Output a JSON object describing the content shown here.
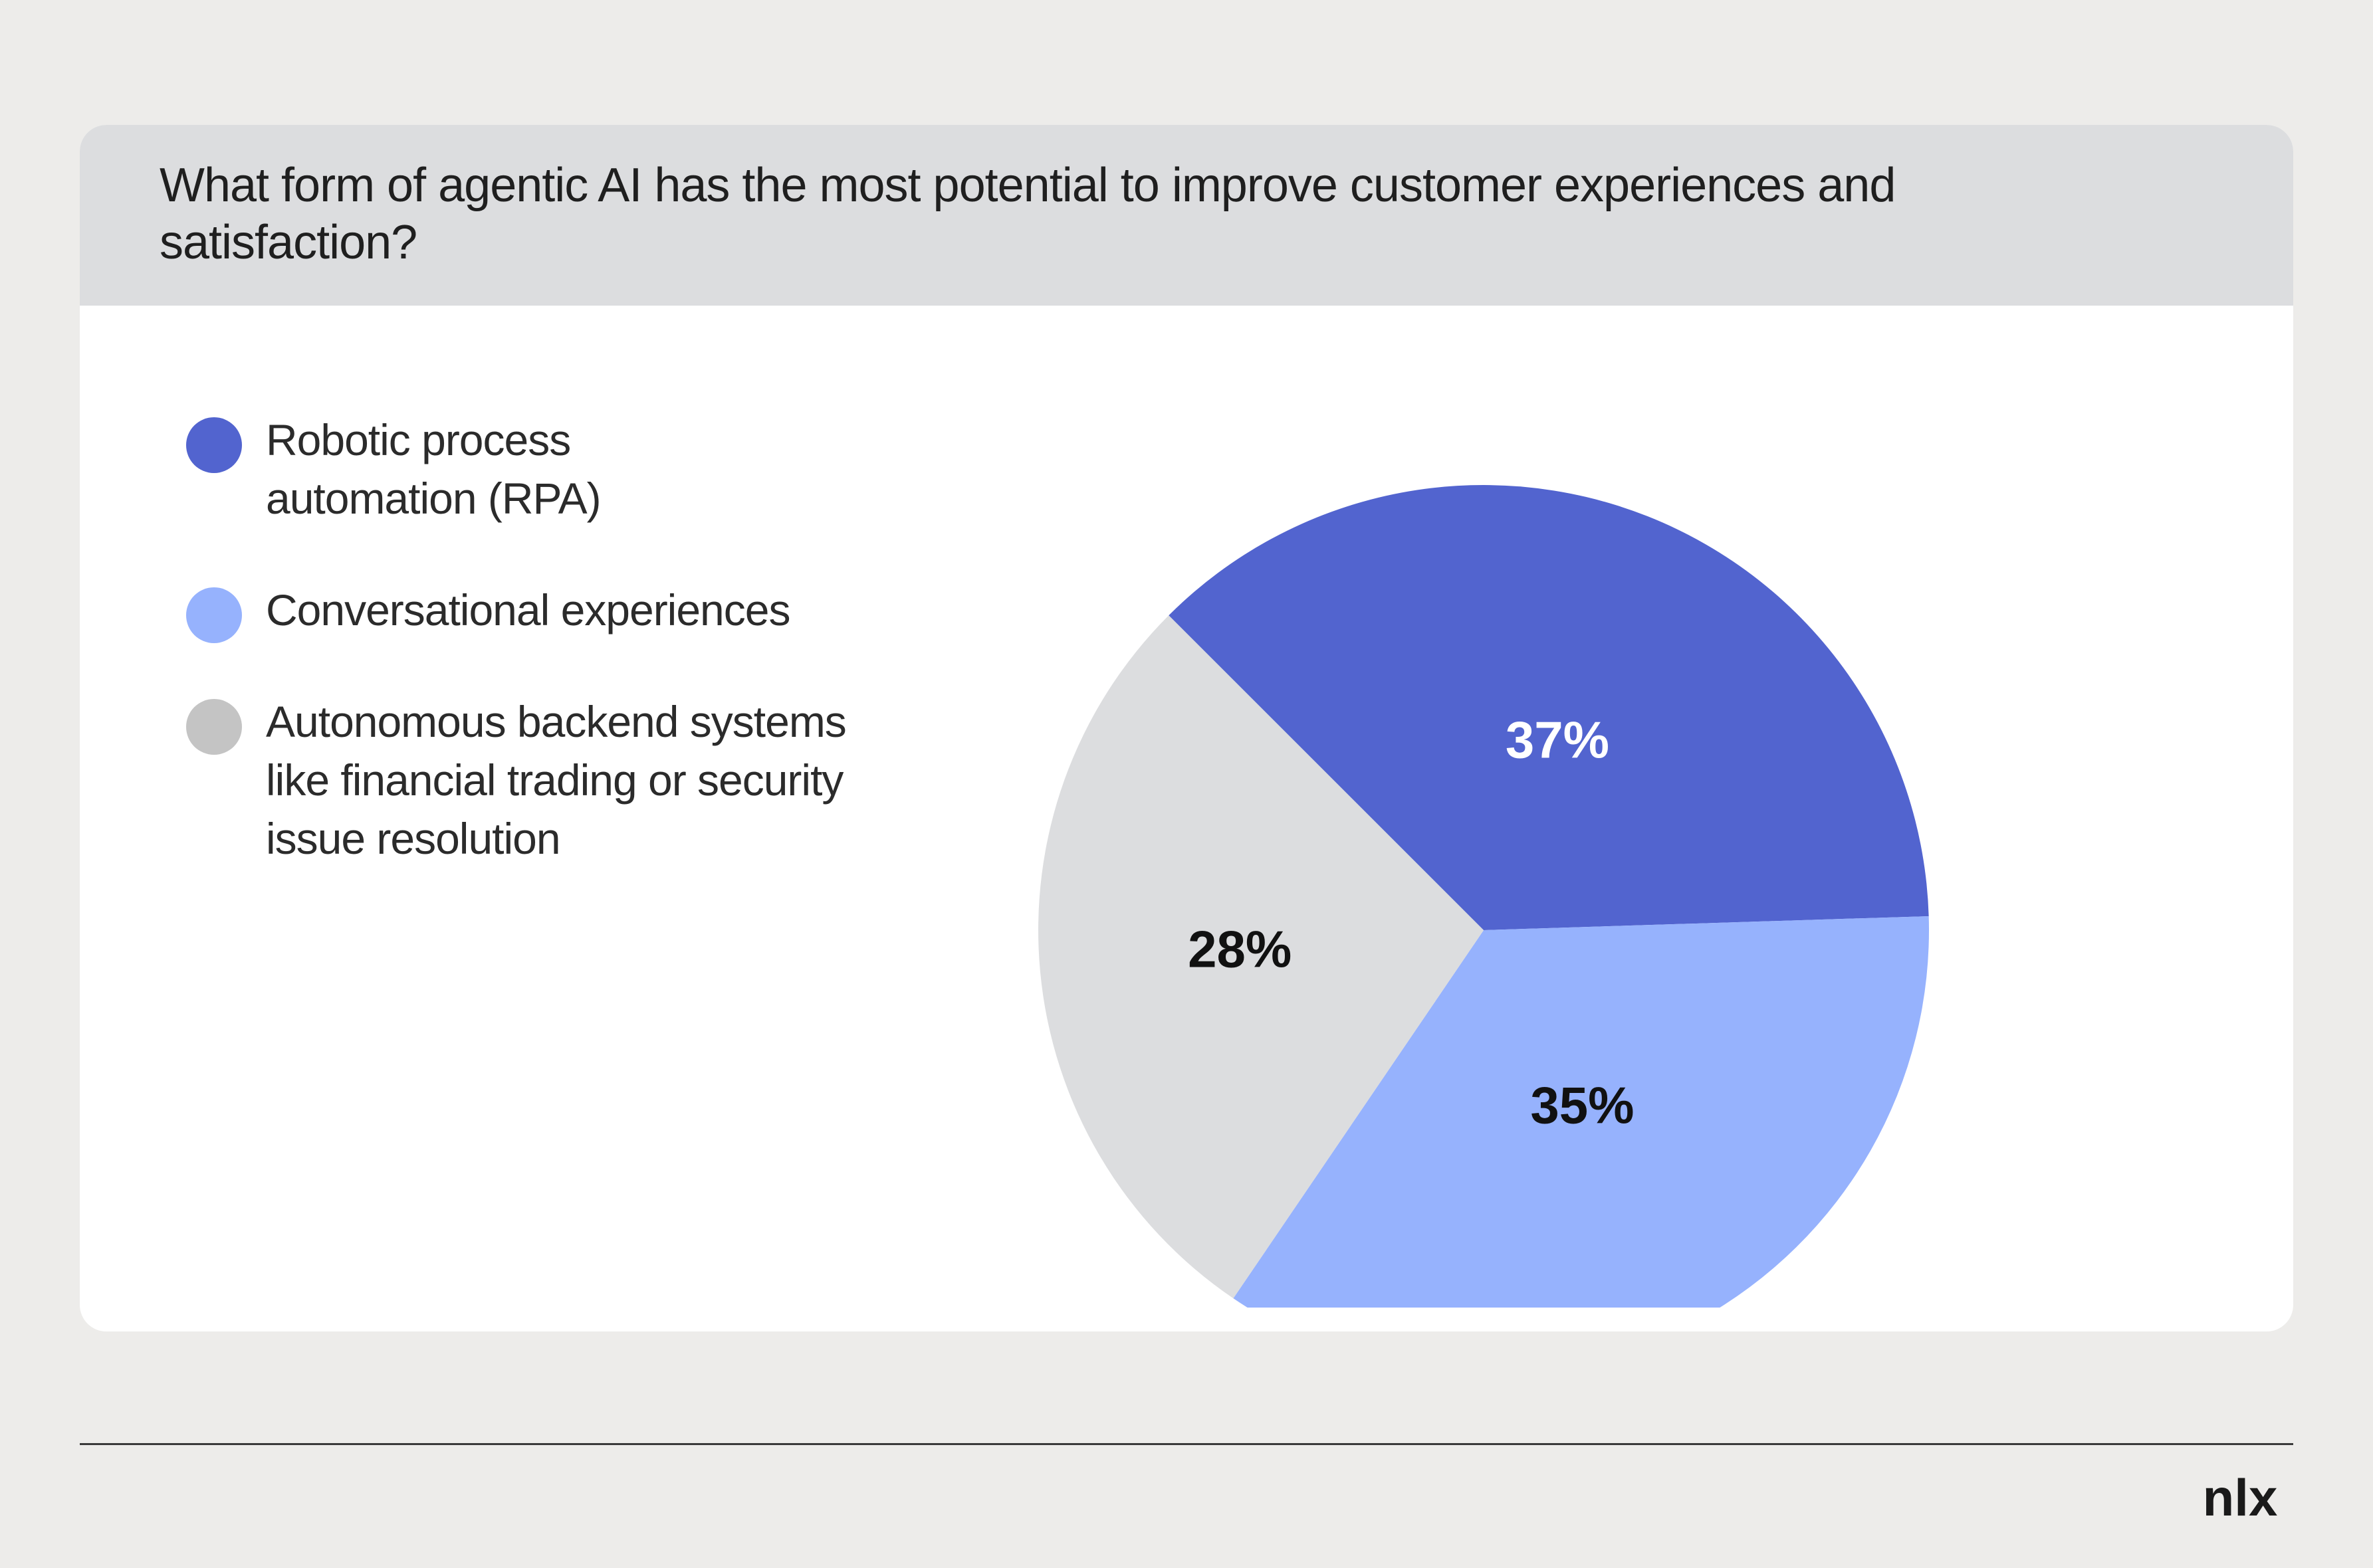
{
  "card": {
    "question": "What form of agentic AI has the most potential to improve customer experiences and satisfaction?"
  },
  "chart_data": {
    "type": "pie",
    "title": "What form of agentic AI has the most potential to improve customer experiences and satisfaction?",
    "slices": [
      {
        "label": "Robotic process automation (RPA)",
        "value": 37,
        "display": "37%",
        "color": "#5264cf",
        "text_color": "#ffffff"
      },
      {
        "label": "Conversational experiences",
        "value": 35,
        "display": "35%",
        "color": "#96b2fd",
        "text_color": "#111111"
      },
      {
        "label": "Autonomous backend systems like financial trading or security issue resolution",
        "value": 28,
        "display": "28%",
        "color": "#dcdddf",
        "text_color": "#111111"
      }
    ],
    "legend_placement": "left"
  },
  "legend": [
    {
      "label": "Robotic process automation (RPA)",
      "color": "#5264cf"
    },
    {
      "label": "Conversational experiences",
      "color": "#96b2fd"
    },
    {
      "label": "Autonomous backend systems like financial trading or security issue resolution",
      "color": "#c4c4c4"
    }
  ],
  "footer": {
    "logo_text": "nlx",
    "logo_icon": "nlx-logo-icon"
  },
  "colors": {
    "page_background": "#edecea",
    "card_background": "#ffffff",
    "header_background": "#dcdddf"
  }
}
